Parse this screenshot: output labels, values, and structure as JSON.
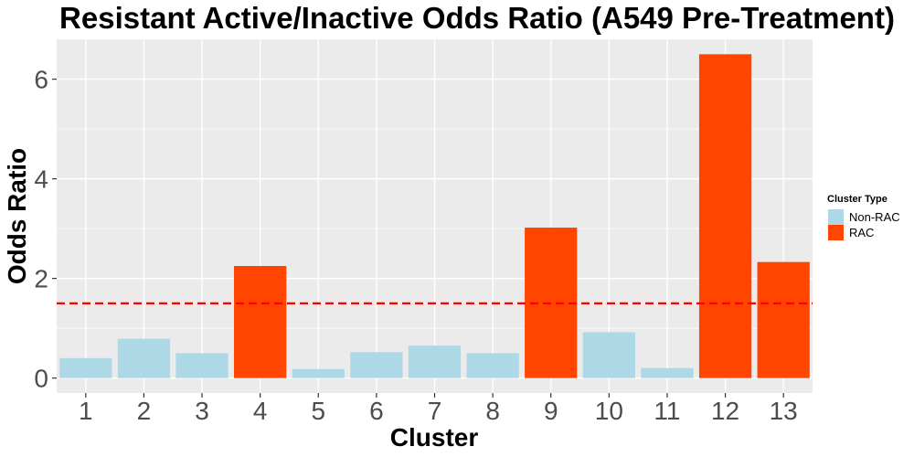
{
  "chart_data": {
    "type": "bar",
    "title": "Resistant Active/Inactive Odds Ratio (A549 Pre-Treatment)",
    "xlabel": "Cluster",
    "ylabel": "Odds Ratio",
    "categories": [
      "1",
      "2",
      "3",
      "4",
      "5",
      "6",
      "7",
      "8",
      "9",
      "10",
      "11",
      "12",
      "13"
    ],
    "values": [
      0.4,
      0.79,
      0.5,
      2.25,
      0.18,
      0.52,
      0.65,
      0.5,
      3.02,
      0.92,
      0.2,
      6.5,
      2.33
    ],
    "groups": [
      "Non-RAC",
      "Non-RAC",
      "Non-RAC",
      "RAC",
      "Non-RAC",
      "Non-RAC",
      "Non-RAC",
      "Non-RAC",
      "RAC",
      "Non-RAC",
      "Non-RAC",
      "RAC",
      "RAC"
    ],
    "y_ticks": [
      0,
      2,
      4,
      6
    ],
    "ylim": [
      -0.3,
      6.8
    ],
    "reference_line": {
      "value": 1.5,
      "color": "#ff0000",
      "style": "dashed"
    },
    "grid": true,
    "legend": {
      "title": "Cluster Type",
      "position": "right",
      "entries": [
        {
          "label": "Non-RAC",
          "color": "#add8e6"
        },
        {
          "label": "RAC",
          "color": "#ff4500"
        }
      ]
    },
    "colors": {
      "panel_background": "#ebebeb",
      "grid": "#ffffff"
    }
  }
}
